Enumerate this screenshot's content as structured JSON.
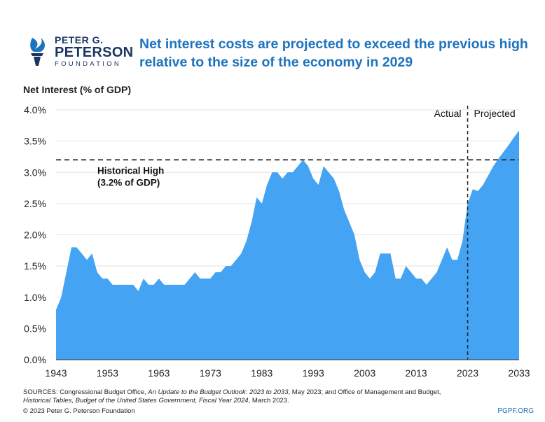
{
  "logo": {
    "line1": "PETER G.",
    "line2": "PETERSON",
    "line3": "FOUNDATION",
    "color": "#1a3763"
  },
  "title": "Net interest costs are projected to exceed the previous high relative to the size of the economy in 2029",
  "chart_data": {
    "type": "area",
    "ylabel": "Net Interest (% of GDP)",
    "ylim": [
      0,
      4.0
    ],
    "yticks": [
      0.0,
      0.5,
      1.0,
      1.5,
      2.0,
      2.5,
      3.0,
      3.5,
      4.0
    ],
    "ytick_labels": [
      "0.0%",
      "0.5%",
      "1.0%",
      "1.5%",
      "2.0%",
      "2.5%",
      "3.0%",
      "3.5%",
      "4.0%"
    ],
    "xlim": [
      1943,
      2033
    ],
    "xticks": [
      1943,
      1953,
      1963,
      1973,
      1983,
      1993,
      2003,
      2013,
      2023,
      2033
    ],
    "fill_color": "#44a4f3",
    "x": [
      1943,
      1944,
      1945,
      1946,
      1947,
      1948,
      1949,
      1950,
      1951,
      1952,
      1953,
      1954,
      1955,
      1956,
      1957,
      1958,
      1959,
      1960,
      1961,
      1962,
      1963,
      1964,
      1965,
      1966,
      1967,
      1968,
      1969,
      1970,
      1971,
      1972,
      1973,
      1974,
      1975,
      1976,
      1977,
      1978,
      1979,
      1980,
      1981,
      1982,
      1983,
      1984,
      1985,
      1986,
      1987,
      1988,
      1989,
      1990,
      1991,
      1992,
      1993,
      1994,
      1995,
      1996,
      1997,
      1998,
      1999,
      2000,
      2001,
      2002,
      2003,
      2004,
      2005,
      2006,
      2007,
      2008,
      2009,
      2010,
      2011,
      2012,
      2013,
      2014,
      2015,
      2016,
      2017,
      2018,
      2019,
      2020,
      2021,
      2022,
      2023,
      2024,
      2025,
      2026,
      2027,
      2028,
      2029,
      2030,
      2031,
      2032,
      2033
    ],
    "values": [
      0.8,
      1.0,
      1.4,
      1.8,
      1.8,
      1.7,
      1.6,
      1.7,
      1.4,
      1.3,
      1.3,
      1.2,
      1.2,
      1.2,
      1.2,
      1.2,
      1.1,
      1.3,
      1.2,
      1.2,
      1.3,
      1.2,
      1.2,
      1.2,
      1.2,
      1.2,
      1.3,
      1.4,
      1.3,
      1.3,
      1.3,
      1.4,
      1.4,
      1.5,
      1.5,
      1.6,
      1.7,
      1.9,
      2.2,
      2.6,
      2.5,
      2.8,
      3.0,
      3.0,
      2.9,
      3.0,
      3.0,
      3.1,
      3.2,
      3.1,
      2.9,
      2.8,
      3.1,
      3.0,
      2.9,
      2.7,
      2.4,
      2.2,
      2.0,
      1.6,
      1.4,
      1.3,
      1.4,
      1.7,
      1.7,
      1.7,
      1.3,
      1.3,
      1.5,
      1.4,
      1.3,
      1.3,
      1.2,
      1.3,
      1.4,
      1.6,
      1.8,
      1.6,
      1.6,
      1.9,
      2.5,
      2.73,
      2.7,
      2.8,
      2.95,
      3.1,
      3.22,
      3.33,
      3.44,
      3.56,
      3.67
    ],
    "reference_line": {
      "value": 3.2,
      "label_line1": "Historical High",
      "label_line2": "(3.2% of GDP)"
    },
    "divider": {
      "x": 2023,
      "left_label": "Actual",
      "right_label": "Projected"
    }
  },
  "sources": {
    "prefix": "SOURCES: Congressional Budget Office, ",
    "italic1": "An Update to the Budget Outlook: 2023 to 2033",
    "mid": ", May 2023; and Office of Management and Budget,",
    "italic2": "Historical Tables, Budget of the United States Government, Fiscal Year 2024",
    "suffix": ", March 2023."
  },
  "copyright": "© 2023 Peter G. Peterson Foundation",
  "site": "PGPF.ORG"
}
